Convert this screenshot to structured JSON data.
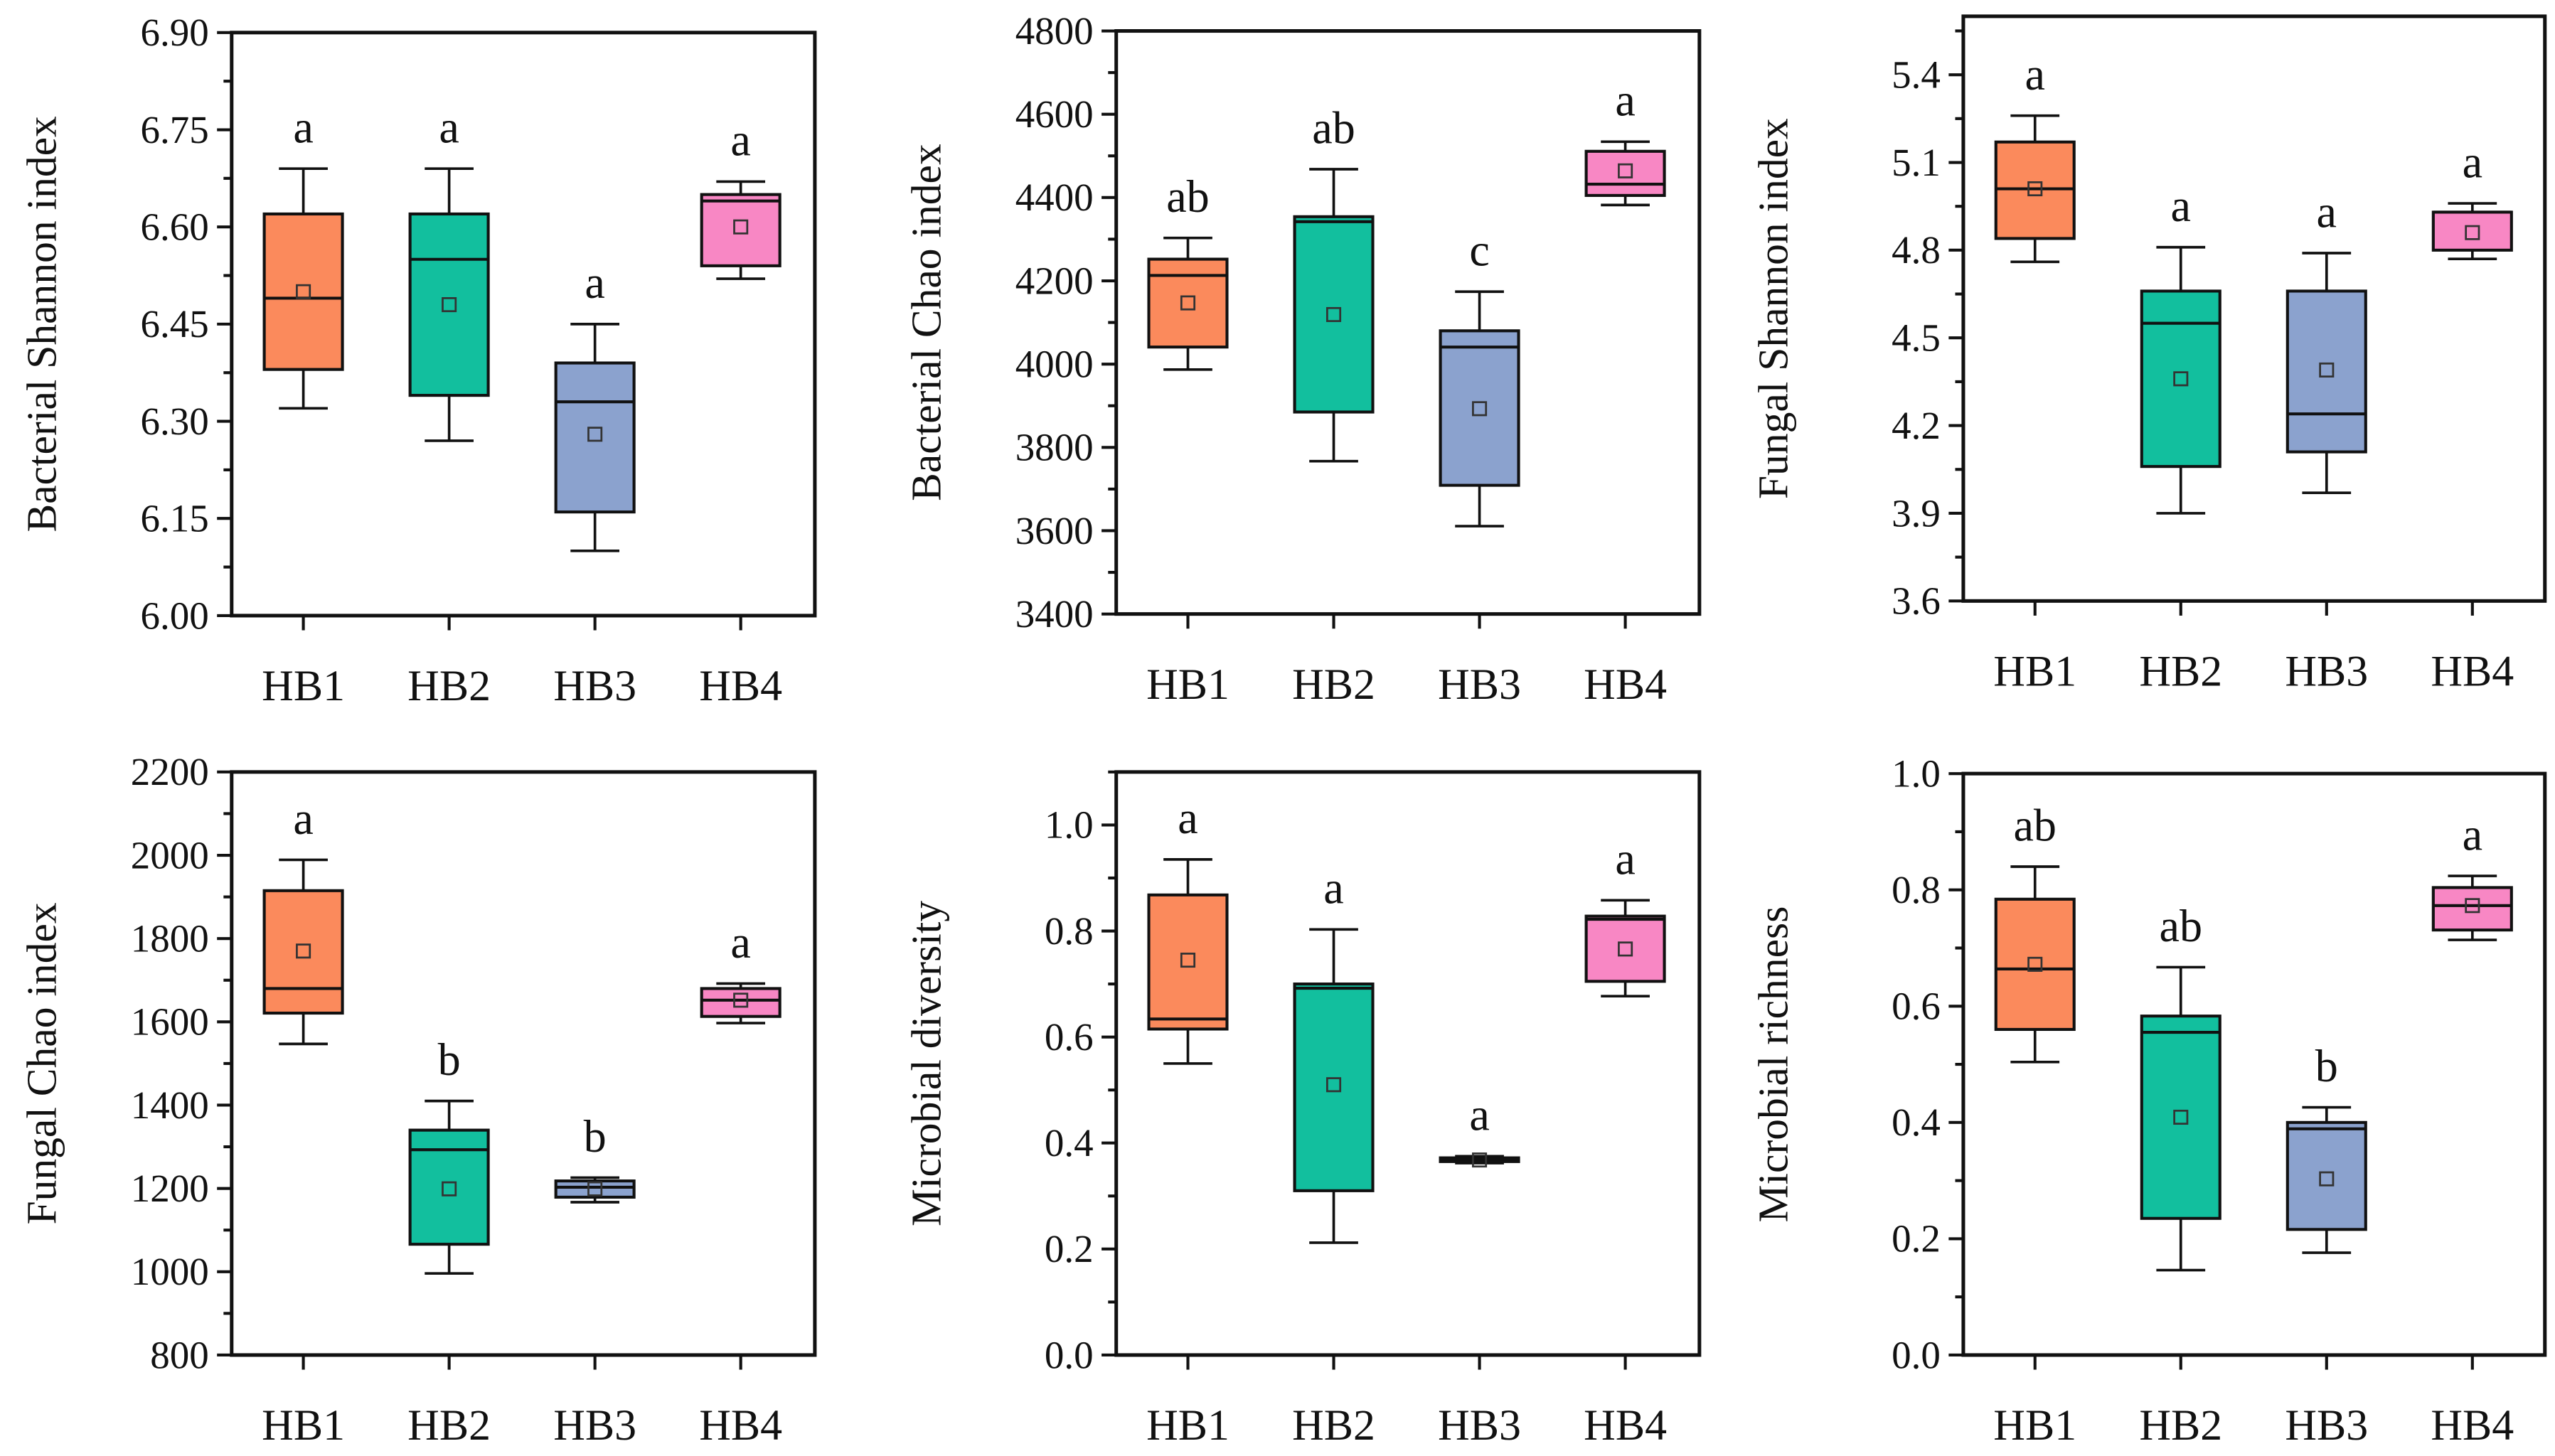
{
  "colors": {
    "HB1": "#FB8A5C",
    "HB2": "#12BF9E",
    "HB3": "#8BA2CE",
    "HB4": "#F887C4"
  },
  "chart_data": [
    {
      "type": "box",
      "ylabel": "Bacterial Shannon index",
      "ylim": [
        6.0,
        6.9
      ],
      "yticks": [
        "6.00",
        "6.15",
        "6.30",
        "6.45",
        "6.60",
        "6.75",
        "6.90"
      ],
      "categories": [
        "HB1",
        "HB2",
        "HB3",
        "HB4"
      ],
      "boxes": [
        {
          "group": "HB1",
          "min": 6.32,
          "q1": 6.38,
          "median": 6.49,
          "q3": 6.62,
          "max": 6.69,
          "mean": 6.5,
          "letter": "a"
        },
        {
          "group": "HB2",
          "min": 6.27,
          "q1": 6.34,
          "median": 6.55,
          "q3": 6.62,
          "max": 6.69,
          "mean": 6.48,
          "letter": "a"
        },
        {
          "group": "HB3",
          "min": 6.1,
          "q1": 6.16,
          "median": 6.33,
          "q3": 6.39,
          "max": 6.45,
          "mean": 6.28,
          "letter": "a"
        },
        {
          "group": "HB4",
          "min": 6.52,
          "q1": 6.54,
          "median": 6.64,
          "q3": 6.65,
          "max": 6.67,
          "mean": 6.6,
          "letter": "a"
        }
      ]
    },
    {
      "type": "box",
      "ylabel": "Bacterial Chao index",
      "ylim": [
        3400,
        4800
      ],
      "yticks": [
        "3400",
        "3600",
        "3800",
        "4000",
        "4200",
        "4400",
        "4600",
        "4800"
      ],
      "categories": [
        "HB1",
        "HB2",
        "HB3",
        "HB4"
      ],
      "boxes": [
        {
          "group": "HB1",
          "min": 3987,
          "q1": 4041,
          "median": 4213,
          "q3": 4252,
          "max": 4303,
          "mean": 4147,
          "letter": "ab"
        },
        {
          "group": "HB2",
          "min": 3767,
          "q1": 3885,
          "median": 4342,
          "q3": 4354,
          "max": 4468,
          "mean": 4119,
          "letter": "ab"
        },
        {
          "group": "HB3",
          "min": 3611,
          "q1": 3709,
          "median": 4041,
          "q3": 4080,
          "max": 4174,
          "mean": 3893,
          "letter": "c"
        },
        {
          "group": "HB4",
          "min": 4382,
          "q1": 4405,
          "median": 4432,
          "q3": 4511,
          "max": 4534,
          "mean": 4464,
          "letter": "a"
        }
      ]
    },
    {
      "type": "box",
      "ylabel": "Fungal Shannon index",
      "ylim": [
        3.6,
        5.6
      ],
      "yticks": [
        "3.6",
        "3.9",
        "4.2",
        "4.5",
        "4.8",
        "5.1",
        "5.4"
      ],
      "categories": [
        "HB1",
        "HB2",
        "HB3",
        "HB4"
      ],
      "boxes": [
        {
          "group": "HB1",
          "min": 4.76,
          "q1": 4.84,
          "median": 5.01,
          "q3": 5.17,
          "max": 5.26,
          "mean": 5.01,
          "letter": "a"
        },
        {
          "group": "HB2",
          "min": 3.9,
          "q1": 4.06,
          "median": 4.55,
          "q3": 4.66,
          "max": 4.81,
          "mean": 4.36,
          "letter": "a"
        },
        {
          "group": "HB3",
          "min": 3.97,
          "q1": 4.11,
          "median": 4.24,
          "q3": 4.66,
          "max": 4.79,
          "mean": 4.39,
          "letter": "a"
        },
        {
          "group": "HB4",
          "min": 4.77,
          "q1": 4.8,
          "median": 4.93,
          "q3": 4.93,
          "max": 4.96,
          "mean": 4.86,
          "letter": "a"
        }
      ]
    },
    {
      "type": "box",
      "ylabel": "Fungal Chao index",
      "ylim": [
        800,
        2200
      ],
      "yticks": [
        "800",
        "1000",
        "1200",
        "1400",
        "1600",
        "1800",
        "2000",
        "2200"
      ],
      "categories": [
        "HB1",
        "HB2",
        "HB3",
        "HB4"
      ],
      "boxes": [
        {
          "group": "HB1",
          "min": 1547,
          "q1": 1621,
          "median": 1680,
          "q3": 1915,
          "max": 1989,
          "mean": 1770,
          "letter": "a"
        },
        {
          "group": "HB2",
          "min": 996,
          "q1": 1066,
          "median": 1293,
          "q3": 1340,
          "max": 1410,
          "mean": 1199,
          "letter": "b"
        },
        {
          "group": "HB3",
          "min": 1167,
          "q1": 1179,
          "median": 1203,
          "q3": 1218,
          "max": 1226,
          "mean": 1199,
          "letter": "b"
        },
        {
          "group": "HB4",
          "min": 1597,
          "q1": 1613,
          "median": 1652,
          "q3": 1680,
          "max": 1692,
          "mean": 1652,
          "letter": "a"
        }
      ]
    },
    {
      "type": "box",
      "ylabel": "Microbial diversity",
      "ylim": [
        0.0,
        1.1
      ],
      "yticks": [
        "0.0",
        "0.2",
        "0.4",
        "0.6",
        "0.8",
        "1.0"
      ],
      "categories": [
        "HB1",
        "HB2",
        "HB3",
        "HB4"
      ],
      "boxes": [
        {
          "group": "HB1",
          "min": 0.55,
          "q1": 0.615,
          "median": 0.634,
          "q3": 0.868,
          "max": 0.935,
          "mean": 0.745,
          "letter": "a"
        },
        {
          "group": "HB2",
          "min": 0.212,
          "q1": 0.31,
          "median": 0.692,
          "q3": 0.7,
          "max": 0.803,
          "mean": 0.51,
          "letter": "a"
        },
        {
          "group": "HB3",
          "min": 0.362,
          "q1": 0.365,
          "median": 0.369,
          "q3": 0.372,
          "max": 0.375,
          "mean": 0.368,
          "letter": "a"
        },
        {
          "group": "HB4",
          "min": 0.677,
          "q1": 0.705,
          "median": 0.822,
          "q3": 0.828,
          "max": 0.858,
          "mean": 0.766,
          "letter": "a"
        }
      ]
    },
    {
      "type": "box",
      "ylabel": "Microbial richness",
      "ylim": [
        0.0,
        1.0
      ],
      "yticks": [
        "0.0",
        "0.2",
        "0.4",
        "0.6",
        "0.8",
        "1.0"
      ],
      "categories": [
        "HB1",
        "HB2",
        "HB3",
        "HB4"
      ],
      "boxes": [
        {
          "group": "HB1",
          "min": 0.504,
          "q1": 0.56,
          "median": 0.664,
          "q3": 0.784,
          "max": 0.84,
          "mean": 0.672,
          "letter": "ab"
        },
        {
          "group": "HB2",
          "min": 0.146,
          "q1": 0.235,
          "median": 0.555,
          "q3": 0.583,
          "max": 0.667,
          "mean": 0.409,
          "letter": "ab"
        },
        {
          "group": "HB3",
          "min": 0.176,
          "q1": 0.216,
          "median": 0.389,
          "q3": 0.4,
          "max": 0.426,
          "mean": 0.303,
          "letter": "b"
        },
        {
          "group": "HB4",
          "min": 0.714,
          "q1": 0.731,
          "median": 0.773,
          "q3": 0.804,
          "max": 0.824,
          "mean": 0.773,
          "letter": "a"
        }
      ]
    }
  ]
}
